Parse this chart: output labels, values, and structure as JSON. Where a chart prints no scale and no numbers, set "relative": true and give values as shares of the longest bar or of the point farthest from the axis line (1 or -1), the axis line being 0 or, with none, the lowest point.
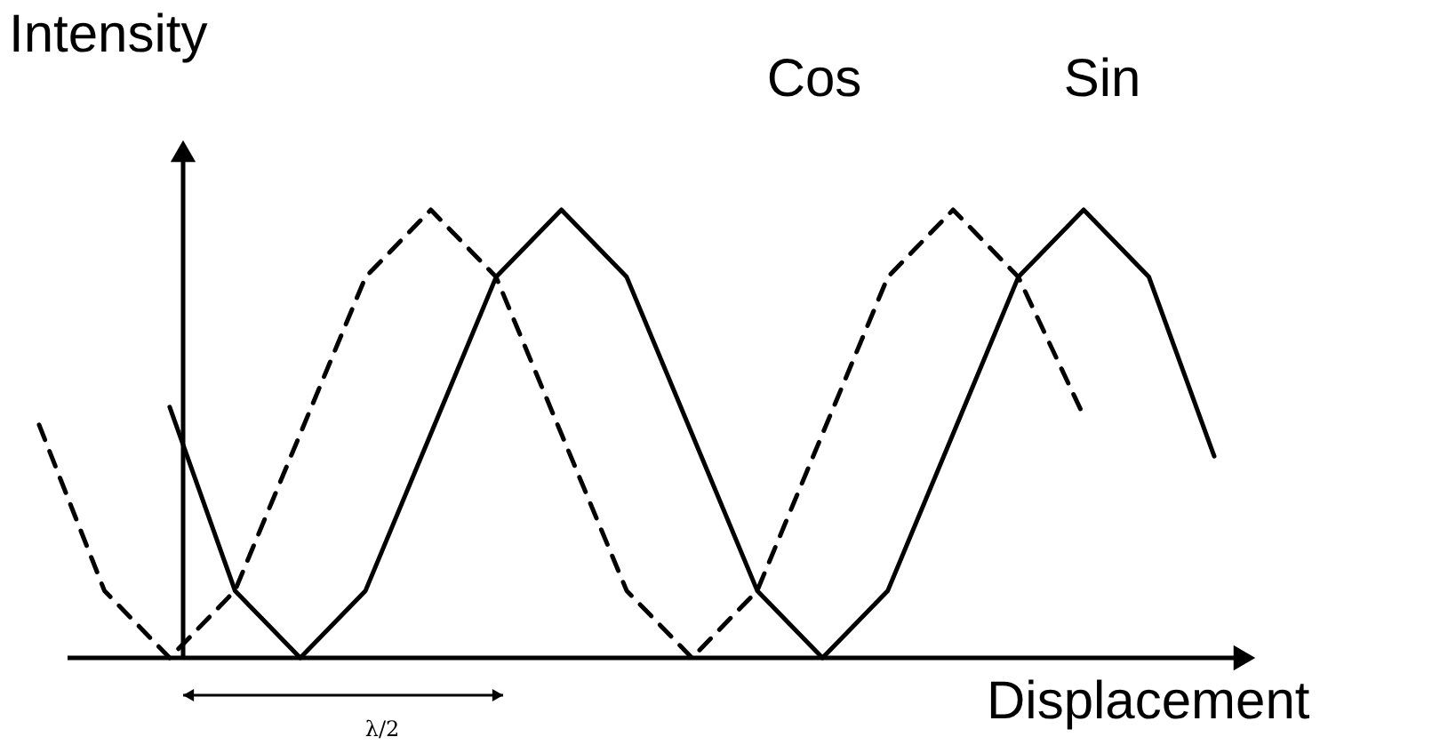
{
  "chart_data": {
    "type": "line",
    "relative": true,
    "ylabel": "Intensity",
    "xlabel": "Displacement",
    "annotations": [
      "λ/2"
    ],
    "categories": [
      null,
      null,
      null,
      null,
      null,
      null,
      null,
      null,
      null,
      null,
      null,
      null,
      null,
      null,
      null,
      null,
      null,
      null,
      null
    ],
    "series": [
      {
        "name": "Cos",
        "color": "#000000",
        "line_style": "dashed",
        "values": [
          0.52,
          0.15,
          0,
          0.15,
          0.5,
          0.85,
          1,
          0.85,
          0.5,
          0.15,
          0,
          0.15,
          0.5,
          0.85,
          1,
          0.85,
          0.54,
          null,
          null
        ]
      },
      {
        "name": "Sin",
        "color": "#000000",
        "line_style": "solid",
        "values": [
          null,
          null,
          0.56,
          0.15,
          0,
          0.15,
          0.5,
          0.85,
          1,
          0.85,
          0.5,
          0.15,
          0,
          0.15,
          0.5,
          0.85,
          1,
          0.85,
          0.45
        ]
      }
    ]
  }
}
